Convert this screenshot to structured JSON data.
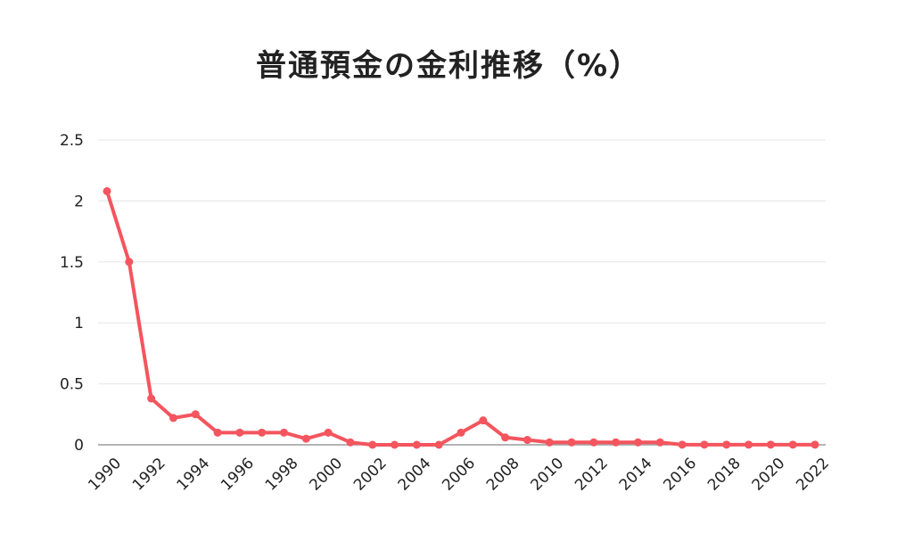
{
  "chart_data": {
    "type": "line",
    "title": "普通預金の金利推移（%）",
    "xlabel": "",
    "ylabel": "",
    "x": [
      1990,
      1991,
      1992,
      1993,
      1994,
      1995,
      1996,
      1997,
      1998,
      1999,
      2000,
      2001,
      2002,
      2003,
      2004,
      2005,
      2006,
      2007,
      2008,
      2009,
      2010,
      2011,
      2012,
      2013,
      2014,
      2015,
      2016,
      2017,
      2018,
      2019,
      2020,
      2021,
      2022
    ],
    "series": [
      {
        "values": [
          2.08,
          1.5,
          0.38,
          0.22,
          0.25,
          0.1,
          0.1,
          0.1,
          0.1,
          0.05,
          0.1,
          0.02,
          0.0,
          0.0,
          0.0,
          0.0,
          0.1,
          0.2,
          0.06,
          0.04,
          0.02,
          0.02,
          0.02,
          0.02,
          0.02,
          0.02,
          0.001,
          0.001,
          0.001,
          0.001,
          0.001,
          0.001,
          0.001
        ],
        "color": "#f4555e"
      }
    ],
    "ylim": [
      0,
      2.5
    ],
    "yticks": [
      "0",
      "0.5",
      "1",
      "1.5",
      "2",
      "2.5"
    ],
    "xticks": [
      "1990",
      "1992",
      "1994",
      "1996",
      "1998",
      "2000",
      "2002",
      "2004",
      "2006",
      "2008",
      "2010",
      "2012",
      "2014",
      "2016",
      "2018",
      "2020",
      "2022"
    ],
    "grid": true,
    "gridColor": "#e6e6e6",
    "axisColor": "#888888",
    "legend": "none"
  }
}
